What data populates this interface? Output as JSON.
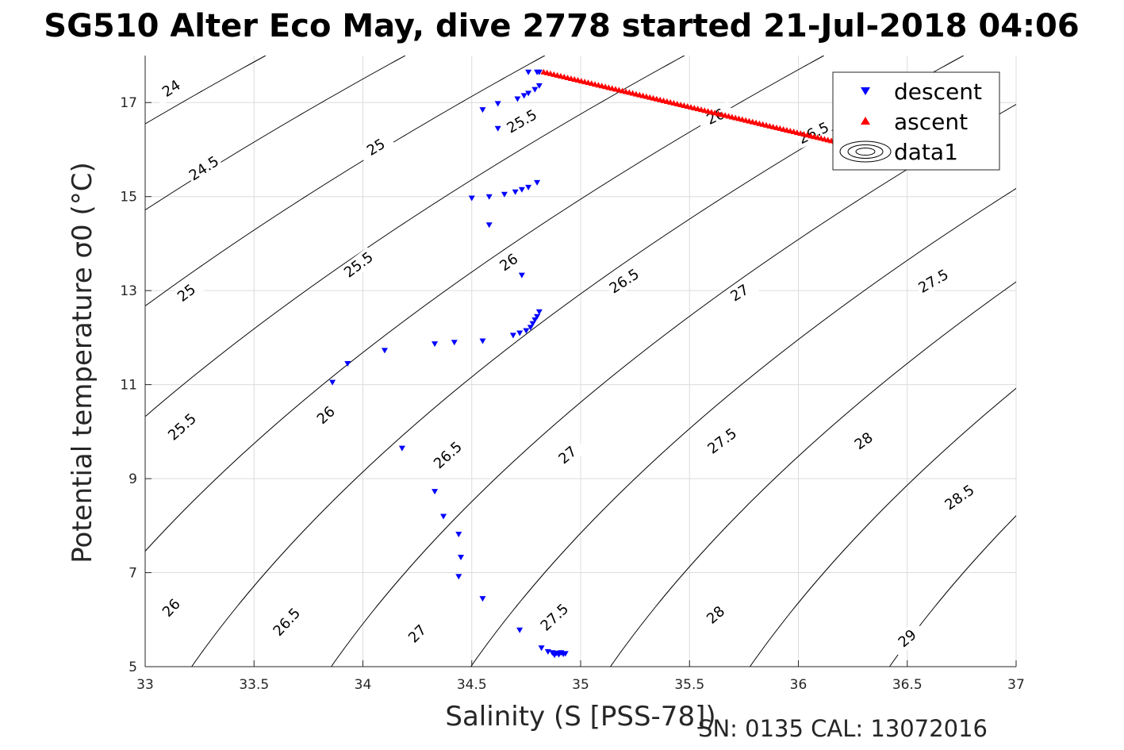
{
  "figure": {
    "title": "SG510 Alter Eco May, dive 2778 started 21-Jul-2018 04:06",
    "footer": "SN: 0135  CAL: 13072016"
  },
  "chart_data": {
    "type": "scatter",
    "title": "SG510 Alter Eco May, dive 2778 started 21-Jul-2018 04:06",
    "xlabel": "Salinity (S [PSS-78])",
    "ylabel": "Potential temperature σ0 (°C)",
    "xlim": [
      33,
      37
    ],
    "ylim": [
      5,
      18
    ],
    "xticks": [
      33,
      33.5,
      34,
      34.5,
      35,
      35.5,
      36,
      36.5,
      37
    ],
    "xtick_labels": [
      "33",
      "33.5",
      "34",
      "34.5",
      "35",
      "35.5",
      "36",
      "36.5",
      "37"
    ],
    "yticks": [
      5,
      7,
      9,
      11,
      13,
      15,
      17
    ],
    "ytick_labels": [
      "5",
      "7",
      "9",
      "11",
      "13",
      "15",
      "17"
    ],
    "grid": true,
    "legend_position": "top-right",
    "series": [
      {
        "name": "descent",
        "marker": "triangle-down",
        "color": "#0000ff",
        "x": [
          34.76,
          34.8,
          34.81,
          34.55,
          34.62,
          34.71,
          34.74,
          34.76,
          34.79,
          34.81,
          34.62,
          34.8,
          34.76,
          34.73,
          34.7,
          34.65,
          34.58,
          34.5,
          34.58,
          34.73,
          34.81,
          34.8,
          34.79,
          34.78,
          34.77,
          34.75,
          34.72,
          34.69,
          34.55,
          34.42,
          34.33,
          34.1,
          33.93,
          33.86,
          34.18,
          34.33,
          34.37,
          34.44,
          34.45,
          34.44,
          34.55,
          34.72,
          34.82,
          34.85,
          34.87,
          34.89,
          34.91,
          34.93,
          34.88,
          34.9,
          34.92
        ],
        "y": [
          17.65,
          17.65,
          17.65,
          16.85,
          16.98,
          17.08,
          17.15,
          17.2,
          17.28,
          17.36,
          16.45,
          15.3,
          15.2,
          15.15,
          15.1,
          15.05,
          15.0,
          14.97,
          14.4,
          13.33,
          12.55,
          12.45,
          12.38,
          12.3,
          12.22,
          12.15,
          12.1,
          12.05,
          11.93,
          11.9,
          11.87,
          11.73,
          11.45,
          11.05,
          9.65,
          8.73,
          8.2,
          7.82,
          7.33,
          6.92,
          6.45,
          5.78,
          5.4,
          5.32,
          5.3,
          5.29,
          5.3,
          5.28,
          5.25,
          5.26,
          5.27
        ]
      },
      {
        "name": "ascent",
        "marker": "triangle-up",
        "color": "#ff0000",
        "x_start": 34.83,
        "y_start": 17.65,
        "x_end": 36.23,
        "y_end": 16.1,
        "n_points": 90
      }
    ],
    "contours": {
      "name": "data1",
      "labels": [
        {
          "text": "24",
          "x": 33.12,
          "y": 17.3,
          "angle": -33
        },
        {
          "text": "24.5",
          "x": 33.27,
          "y": 15.6,
          "angle": -33
        },
        {
          "text": "25",
          "x": 34.06,
          "y": 16.05,
          "angle": -32
        },
        {
          "text": "25.5",
          "x": 34.73,
          "y": 16.6,
          "angle": -30
        },
        {
          "text": "26",
          "x": 35.62,
          "y": 16.7,
          "angle": -25
        },
        {
          "text": "26.5",
          "x": 36.07,
          "y": 16.35,
          "angle": -25
        },
        {
          "text": "25",
          "x": 33.19,
          "y": 12.95,
          "angle": -38
        },
        {
          "text": "25.5",
          "x": 33.98,
          "y": 13.55,
          "angle": -37
        },
        {
          "text": "26",
          "x": 34.67,
          "y": 13.6,
          "angle": -35
        },
        {
          "text": "26.5",
          "x": 35.2,
          "y": 13.2,
          "angle": -33
        },
        {
          "text": "27",
          "x": 35.73,
          "y": 12.95,
          "angle": -32
        },
        {
          "text": "27.5",
          "x": 36.62,
          "y": 13.2,
          "angle": -30
        },
        {
          "text": "25.5",
          "x": 33.17,
          "y": 10.1,
          "angle": -42
        },
        {
          "text": "26",
          "x": 33.83,
          "y": 10.35,
          "angle": -42
        },
        {
          "text": "26.5",
          "x": 34.39,
          "y": 9.5,
          "angle": -42
        },
        {
          "text": "27",
          "x": 34.94,
          "y": 9.5,
          "angle": -40
        },
        {
          "text": "27.5",
          "x": 35.65,
          "y": 9.8,
          "angle": -37
        },
        {
          "text": "28",
          "x": 36.3,
          "y": 9.8,
          "angle": -35
        },
        {
          "text": "28.5",
          "x": 36.74,
          "y": 8.6,
          "angle": -35
        },
        {
          "text": "26",
          "x": 33.12,
          "y": 6.25,
          "angle": -47
        },
        {
          "text": "26.5",
          "x": 33.65,
          "y": 5.95,
          "angle": -47
        },
        {
          "text": "27",
          "x": 34.25,
          "y": 5.7,
          "angle": -45
        },
        {
          "text": "27.5",
          "x": 34.88,
          "y": 6.05,
          "angle": -43
        },
        {
          "text": "28",
          "x": 35.62,
          "y": 6.1,
          "angle": -41
        },
        {
          "text": "29",
          "x": 36.5,
          "y": 5.6,
          "angle": -40
        }
      ]
    }
  }
}
